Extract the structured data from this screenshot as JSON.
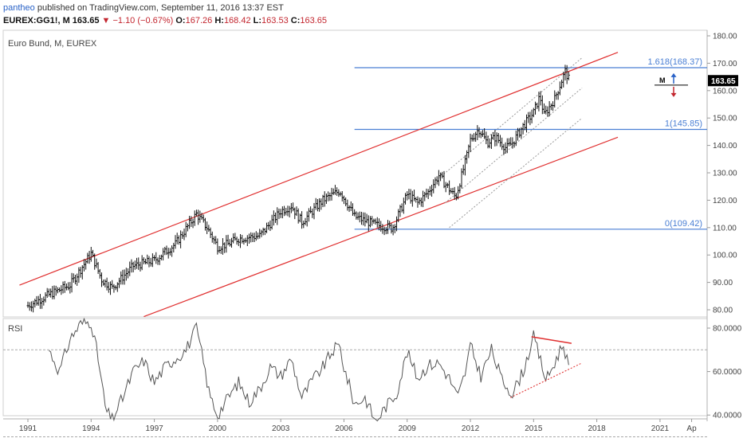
{
  "header": {
    "user": "pantheo",
    "published": "published on TradingView.com, September 11, 2016 13:37 EST",
    "symbol": "EUREX:GG1!, M",
    "last": "163.65",
    "arrow": "▼",
    "change": "−1.10 (−0.67%)",
    "o_label": "O:",
    "o": "167.26",
    "h_label": "H:",
    "h": "168.42",
    "l_label": "L:",
    "l": "163.53",
    "c_label": "C:",
    "c": "163.65"
  },
  "main_title": "Euro Bund, M, EUREX",
  "rsi_title": "RSI",
  "price_badge": "163.65",
  "position_marker": "M",
  "colors": {
    "bars": "#111111",
    "channel": "#e03030",
    "fib": "#4a7fd4",
    "fib_text": "#4a7fd4",
    "dotted_channel": "#9a9a9a",
    "rsi_line": "#555555",
    "arrow_up": "#2962c7",
    "arrow_down": "#c3262f"
  },
  "chart_data": [
    {
      "type": "ohlc",
      "title": "Euro Bund, M, EUREX",
      "xlabel": "",
      "ylabel": "",
      "x_ticks": [
        "1991",
        "1994",
        "1997",
        "2000",
        "2003",
        "2006",
        "2009",
        "2012",
        "2015",
        "2018",
        "2021",
        "Ap"
      ],
      "y_ticks": [
        "180.00",
        "170.00",
        "160.00",
        "150.00",
        "140.00",
        "130.00",
        "120.00",
        "110.00",
        "100.00",
        "90.00",
        "80.00"
      ],
      "ylim": [
        77,
        182
      ],
      "xlim": [
        1990.6,
        2023.1
      ],
      "grid": false,
      "price_path": [
        [
          1991.0,
          81.5
        ],
        [
          1992.0,
          85.5
        ],
        [
          1993.0,
          89
        ],
        [
          1994.0,
          100.5
        ],
        [
          1994.5,
          91
        ],
        [
          1995.0,
          88
        ],
        [
          1996.0,
          96
        ],
        [
          1997.0,
          98
        ],
        [
          1998.0,
          104
        ],
        [
          1999.0,
          115
        ],
        [
          1999.5,
          110
        ],
        [
          2000.0,
          103
        ],
        [
          2000.5,
          104
        ],
        [
          2001.0,
          106
        ],
        [
          2002.0,
          107
        ],
        [
          2003.0,
          116
        ],
        [
          2003.5,
          118
        ],
        [
          2004.0,
          112
        ],
        [
          2005.0,
          120
        ],
        [
          2005.8,
          123.5
        ],
        [
          2006.5,
          114
        ],
        [
          2007.5,
          111
        ],
        [
          2008.3,
          109.8
        ],
        [
          2008.6,
          115
        ],
        [
          2009.0,
          122
        ],
        [
          2009.5,
          119
        ],
        [
          2010.0,
          123
        ],
        [
          2010.5,
          129
        ],
        [
          2011.0,
          124
        ],
        [
          2011.3,
          121
        ],
        [
          2011.8,
          135
        ],
        [
          2012.0,
          142
        ],
        [
          2012.4,
          146
        ],
        [
          2012.8,
          141
        ],
        [
          2013.2,
          143
        ],
        [
          2013.7,
          139
        ],
        [
          2014.0,
          141
        ],
        [
          2014.5,
          147
        ],
        [
          2015.0,
          152
        ],
        [
          2015.3,
          158
        ],
        [
          2015.5,
          151
        ],
        [
          2016.0,
          157
        ],
        [
          2016.5,
          167
        ],
        [
          2016.7,
          163.65
        ]
      ],
      "fib_levels": [
        {
          "label": "1.618(168.37)",
          "value": 168.37
        },
        {
          "label": "1(145.85)",
          "value": 145.85
        },
        {
          "label": "0(109.42)",
          "value": 109.42
        }
      ],
      "fib_x_start": 2006.5,
      "channel_upper": [
        [
          1990.6,
          89
        ],
        [
          2019.0,
          174
        ]
      ],
      "channel_lower": [
        [
          1996.5,
          77.5
        ],
        [
          2019.0,
          143
        ]
      ],
      "dotted_channel": [
        [
          [
            2010.5,
            128
          ],
          [
            2017.3,
            172
          ]
        ],
        [
          [
            2011.0,
            110
          ],
          [
            2017.3,
            150
          ]
        ],
        [
          [
            2010.8,
            119
          ],
          [
            2017.3,
            161
          ]
        ]
      ],
      "last_price": 163.65
    },
    {
      "type": "line",
      "title": "RSI",
      "ylim": [
        28,
        86
      ],
      "y_ticks": [
        "80.0000",
        "60.0000",
        "40.0000"
      ],
      "levels": [
        70,
        30
      ],
      "rsi_path": [
        [
          1992.0,
          70
        ],
        [
          1992.5,
          60
        ],
        [
          1993.0,
          75
        ],
        [
          1993.5,
          82
        ],
        [
          1994.0,
          83
        ],
        [
          1994.3,
          68
        ],
        [
          1994.7,
          42
        ],
        [
          1995.0,
          38
        ],
        [
          1995.5,
          48
        ],
        [
          1996.0,
          60
        ],
        [
          1996.5,
          65
        ],
        [
          1997.0,
          55
        ],
        [
          1997.5,
          62
        ],
        [
          1998.0,
          66
        ],
        [
          1998.5,
          70
        ],
        [
          1999.0,
          80
        ],
        [
          1999.3,
          66
        ],
        [
          1999.6,
          50
        ],
        [
          2000.0,
          40
        ],
        [
          2000.5,
          48
        ],
        [
          2001.0,
          55
        ],
        [
          2001.5,
          46
        ],
        [
          2002.0,
          52
        ],
        [
          2002.5,
          62
        ],
        [
          2003.0,
          58
        ],
        [
          2003.5,
          66
        ],
        [
          2004.0,
          48
        ],
        [
          2004.5,
          56
        ],
        [
          2005.0,
          62
        ],
        [
          2005.5,
          70
        ],
        [
          2005.8,
          72
        ],
        [
          2006.0,
          62
        ],
        [
          2006.5,
          45
        ],
        [
          2007.0,
          48
        ],
        [
          2007.5,
          37
        ],
        [
          2008.0,
          44
        ],
        [
          2008.5,
          50
        ],
        [
          2009.0,
          69
        ],
        [
          2009.5,
          57
        ],
        [
          2010.0,
          63
        ],
        [
          2010.5,
          64
        ],
        [
          2011.0,
          57
        ],
        [
          2011.4,
          48
        ],
        [
          2011.8,
          61
        ],
        [
          2012.0,
          72
        ],
        [
          2012.5,
          58
        ],
        [
          2013.0,
          70
        ],
        [
          2013.5,
          56
        ],
        [
          2014.0,
          50
        ],
        [
          2014.5,
          60
        ],
        [
          2015.0,
          76
        ],
        [
          2015.3,
          66
        ],
        [
          2015.6,
          56
        ],
        [
          2016.0,
          64
        ],
        [
          2016.4,
          73
        ],
        [
          2016.7,
          61
        ]
      ],
      "bear_divergence": [
        [
          2014.9,
          76
        ],
        [
          2016.8,
          73
        ]
      ],
      "bull_divergence": [
        [
          2013.9,
          48
        ],
        [
          2017.3,
          64
        ]
      ]
    }
  ]
}
